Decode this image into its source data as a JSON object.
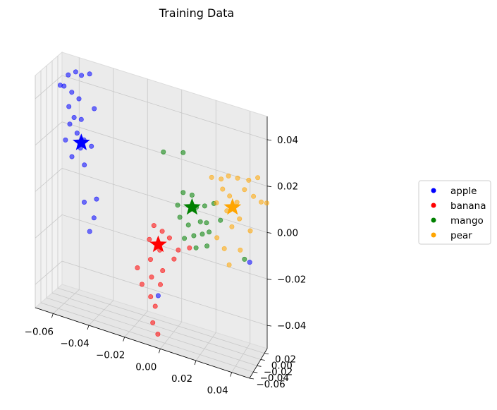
{
  "chart_data": {
    "type": "scatter",
    "projection": "3d",
    "title": "Training Data",
    "xlabel": "",
    "ylabel": "",
    "zlabel": "",
    "xlim": [
      -0.07,
      0.05
    ],
    "ylim": [
      -0.06,
      0.035
    ],
    "zlim": [
      -0.05,
      0.05
    ],
    "x_ticks": [
      "−0.06",
      "−0.04",
      "−0.02",
      "0.00",
      "0.02",
      "0.04"
    ],
    "y_ticks": [
      "−0.06",
      "−0.04",
      "−0.02",
      "0.00",
      "0.02"
    ],
    "z_ticks": [
      "0.04",
      "0.02",
      "0.00",
      "−0.02",
      "−0.04"
    ],
    "grid": true,
    "legend_placement": "center-right",
    "series": [
      {
        "name": "apple",
        "color": "#0000ff",
        "centroid": [
          -0.054,
          0.005,
          0.018
        ],
        "points": [
          [
            -0.062,
            0.008,
            0.045
          ],
          [
            -0.058,
            0.01,
            0.047
          ],
          [
            -0.055,
            0.012,
            0.046
          ],
          [
            -0.066,
            0.004,
            0.04
          ],
          [
            -0.064,
            0.005,
            0.04
          ],
          [
            -0.06,
            0.008,
            0.038
          ],
          [
            -0.056,
            0.009,
            0.036
          ],
          [
            -0.05,
            0.01,
            0.048
          ],
          [
            -0.061,
            0.004,
            0.032
          ],
          [
            -0.058,
            0.004,
            0.028
          ],
          [
            -0.054,
            0.005,
            0.028
          ],
          [
            -0.047,
            0.008,
            0.034
          ],
          [
            -0.06,
            0.001,
            0.025
          ],
          [
            -0.056,
            0.002,
            0.022
          ],
          [
            -0.052,
            0.002,
            0.02
          ],
          [
            -0.048,
            0.004,
            0.018
          ],
          [
            -0.062,
            -0.002,
            0.018
          ],
          [
            -0.058,
            -0.004,
            0.012
          ],
          [
            -0.051,
            -0.003,
            0.01
          ],
          [
            -0.054,
            0.002,
            0.016
          ],
          [
            -0.05,
            -0.01,
            -0.005
          ],
          [
            -0.043,
            -0.01,
            -0.002
          ],
          [
            -0.044,
            -0.013,
            -0.01
          ],
          [
            -0.046,
            -0.016,
            -0.016
          ],
          [
            -0.005,
            -0.03,
            -0.032
          ],
          [
            0.042,
            0.015,
            -0.012
          ]
        ]
      },
      {
        "name": "banana",
        "color": "#ff0000",
        "centroid": [
          -0.005,
          -0.03,
          -0.01
        ],
        "points": [
          [
            -0.008,
            -0.026,
            -0.003
          ],
          [
            -0.003,
            -0.028,
            -0.004
          ],
          [
            0.001,
            -0.027,
            -0.006
          ],
          [
            0.006,
            -0.027,
            -0.01
          ],
          [
            -0.01,
            -0.03,
            -0.009
          ],
          [
            -0.004,
            -0.031,
            -0.012
          ],
          [
            0.004,
            -0.03,
            -0.014
          ],
          [
            -0.009,
            -0.033,
            -0.017
          ],
          [
            -0.002,
            -0.034,
            -0.02
          ],
          [
            -0.016,
            -0.036,
            -0.022
          ],
          [
            -0.008,
            -0.036,
            -0.024
          ],
          [
            -0.003,
            -0.036,
            -0.026
          ],
          [
            -0.013,
            -0.039,
            -0.028
          ],
          [
            -0.008,
            -0.04,
            -0.032
          ],
          [
            -0.005,
            -0.043,
            -0.035
          ],
          [
            -0.006,
            -0.046,
            -0.042
          ],
          [
            -0.003,
            -0.047,
            -0.046
          ],
          [
            0.012,
            -0.024,
            -0.008
          ]
        ]
      },
      {
        "name": "mango",
        "color": "#008000",
        "centroid": [
          0.012,
          -0.012,
          0.008
        ],
        "points": [
          [
            -0.006,
            0.0,
            0.026
          ],
          [
            0.005,
            0.003,
            0.028
          ],
          [
            0.006,
            -0.005,
            0.012
          ],
          [
            0.011,
            -0.004,
            0.012
          ],
          [
            0.003,
            -0.006,
            0.006
          ],
          [
            0.014,
            -0.008,
            0.008
          ],
          [
            0.016,
            -0.006,
            0.002
          ],
          [
            0.02,
            -0.01,
            0.003
          ],
          [
            0.005,
            -0.012,
            0.002
          ],
          [
            0.01,
            -0.013,
            0.0
          ],
          [
            0.019,
            -0.01,
            0.01
          ],
          [
            0.013,
            -0.012,
            -0.004
          ],
          [
            0.018,
            -0.013,
            -0.002
          ],
          [
            0.022,
            -0.014,
            0.0
          ],
          [
            0.008,
            -0.015,
            -0.006
          ],
          [
            0.015,
            -0.018,
            -0.008
          ],
          [
            0.021,
            -0.016,
            -0.006
          ],
          [
            0.024,
            -0.008,
            0.012
          ],
          [
            0.028,
            -0.01,
            0.006
          ],
          [
            0.04,
            0.006,
            -0.01
          ]
        ]
      },
      {
        "name": "pear",
        "color": "#ffa500",
        "centroid": [
          0.034,
          -0.002,
          0.012
        ],
        "points": [
          [
            0.022,
            -0.002,
            0.022
          ],
          [
            0.027,
            0.002,
            0.022
          ],
          [
            0.031,
            0.004,
            0.024
          ],
          [
            0.036,
            0.006,
            0.024
          ],
          [
            0.042,
            0.01,
            0.024
          ],
          [
            0.047,
            0.012,
            0.026
          ],
          [
            0.04,
            0.006,
            0.02
          ],
          [
            0.045,
            0.008,
            0.018
          ],
          [
            0.049,
            0.012,
            0.016
          ],
          [
            0.052,
            0.014,
            0.016
          ],
          [
            0.028,
            0.001,
            0.018
          ],
          [
            0.032,
            0.001,
            0.016
          ],
          [
            0.036,
            0.003,
            0.014
          ],
          [
            0.025,
            -0.004,
            0.012
          ],
          [
            0.031,
            -0.004,
            0.01
          ],
          [
            0.038,
            -0.002,
            0.008
          ],
          [
            0.044,
            0.0,
            0.004
          ],
          [
            0.034,
            -0.005,
            0.004
          ],
          [
            0.038,
            0.002,
            -0.006
          ],
          [
            0.03,
            -0.008,
            -0.006
          ],
          [
            0.026,
            -0.01,
            -0.002
          ],
          [
            0.033,
            -0.01,
            -0.012
          ]
        ]
      }
    ]
  }
}
